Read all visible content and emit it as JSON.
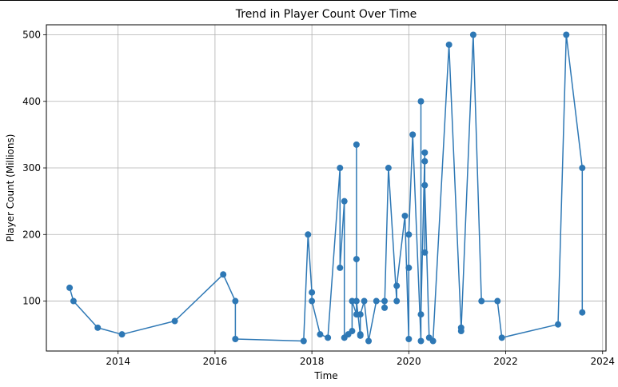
{
  "chart_data": {
    "type": "line",
    "title": "Trend in Player Count Over Time",
    "xlabel": "Time",
    "ylabel": "Player Count (Millions)",
    "xlim": [
      2012.52,
      2024.07
    ],
    "ylim": [
      25,
      515
    ],
    "grid": true,
    "marker": "circle",
    "color": "#2e78b5",
    "x_ticks": [
      2014,
      2016,
      2018,
      2020,
      2022,
      2024
    ],
    "y_ticks": [
      100,
      200,
      300,
      400,
      500
    ],
    "series": [
      {
        "x": [
          2013.0,
          2013.08,
          2013.58,
          2014.08,
          2015.17,
          2016.17,
          2016.42,
          2016.42,
          2017.83,
          2017.92,
          2018.0,
          2018.0,
          2018.17,
          2018.33,
          2018.58,
          2018.58,
          2018.67,
          2018.67,
          2018.75,
          2018.83,
          2018.83,
          2018.92,
          2018.92,
          2018.92,
          2018.92,
          2019.0,
          2019.0,
          2019.0,
          2019.08,
          2019.17,
          2019.33,
          2019.5,
          2019.5,
          2019.58,
          2019.75,
          2019.75,
          2019.92,
          2020.0,
          2020.0,
          2020.0,
          2020.08,
          2020.25,
          2020.25,
          2020.25,
          2020.33,
          2020.33,
          2020.33,
          2020.33,
          2020.42,
          2020.5,
          2020.83,
          2021.08,
          2021.08,
          2021.33,
          2021.5,
          2021.83,
          2021.92,
          2023.08,
          2023.25,
          2023.58,
          2023.58
        ],
        "y": [
          120,
          100,
          60,
          50,
          70,
          140,
          100,
          43,
          40,
          200,
          113,
          100,
          50,
          45,
          300,
          150,
          250,
          45,
          50,
          55,
          100,
          80,
          335,
          163,
          100,
          48,
          50,
          80,
          100,
          40,
          100,
          100,
          90,
          300,
          100,
          123,
          228,
          43,
          150,
          200,
          350,
          40,
          400,
          80,
          323,
          310,
          173,
          274,
          45,
          40,
          485,
          60,
          55,
          500,
          100,
          100,
          45,
          65,
          500,
          300,
          83
        ]
      }
    ]
  }
}
